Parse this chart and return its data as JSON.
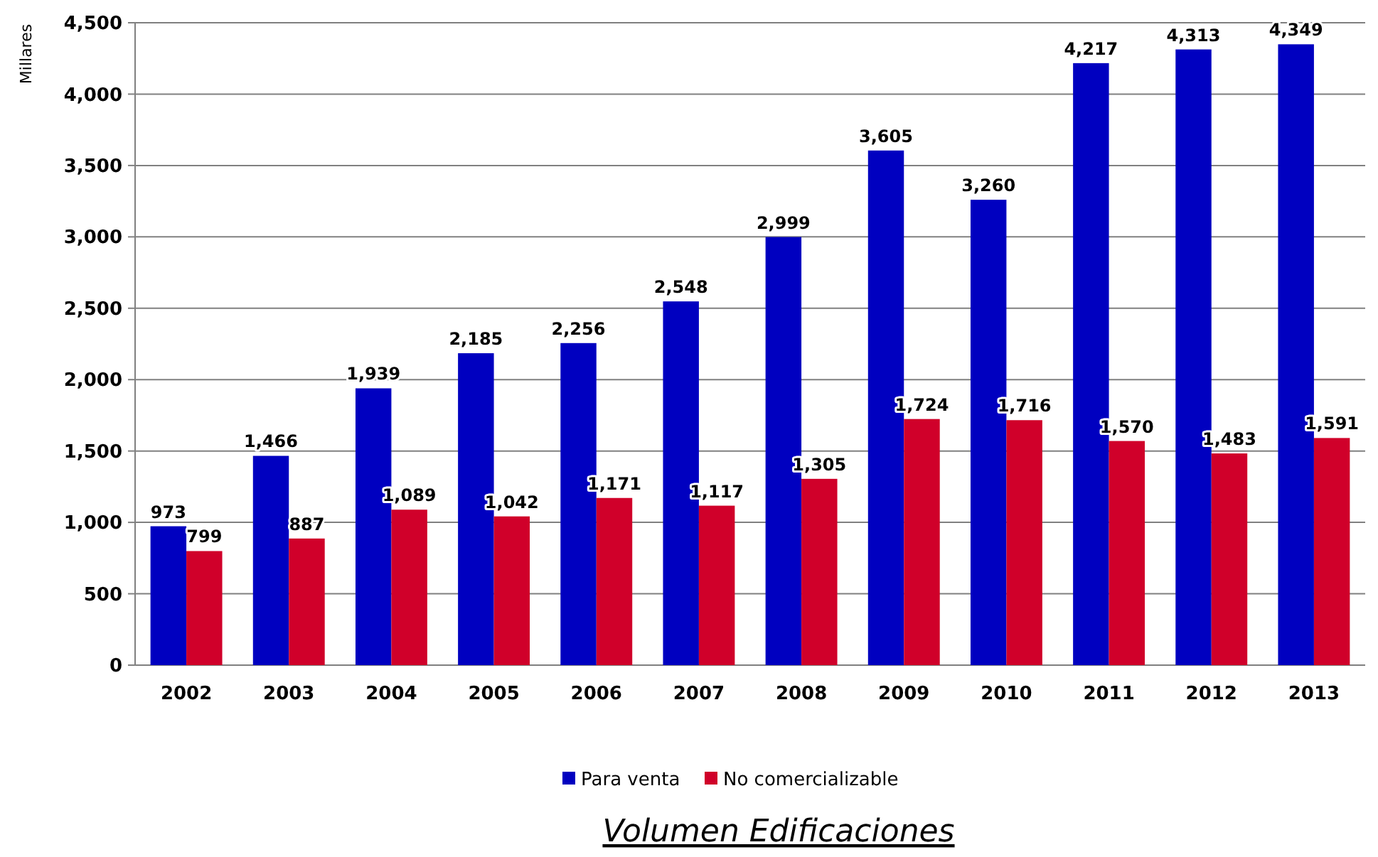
{
  "chart_data": {
    "type": "bar",
    "title": "Volumen Edificaciones",
    "ylabel": "Millares",
    "categories": [
      "2002",
      "2003",
      "2004",
      "2005",
      "2006",
      "2007",
      "2008",
      "2009",
      "2010",
      "2011",
      "2012",
      "2013"
    ],
    "series": [
      {
        "name": "Para venta",
        "color": "#0000c0",
        "values": [
          973,
          1466,
          1939,
          2185,
          2256,
          2548,
          2999,
          3605,
          3260,
          4217,
          4313,
          4349
        ],
        "value_labels": [
          "973",
          "1,466",
          "1,939",
          "2,185",
          "2,256",
          "2,548",
          "2,999",
          "3,605",
          "3,260",
          "4,217",
          "4,313",
          "4,349"
        ]
      },
      {
        "name": "No comercializable",
        "color": "#d0002a",
        "values": [
          799,
          887,
          1089,
          1042,
          1171,
          1117,
          1305,
          1724,
          1716,
          1570,
          1483,
          1591
        ],
        "value_labels": [
          "799",
          "887",
          "1,089",
          "1,042",
          "1,171",
          "1,117",
          "1,305",
          "1,724",
          "1,716",
          "1,570",
          "1,483",
          "1,591"
        ]
      }
    ],
    "ylim": [
      0,
      4500
    ],
    "yticks": [
      0,
      500,
      {
        "value": 1000,
        "label": "1,000"
      },
      {
        "value": 1500,
        "label": "1,500"
      },
      {
        "value": 2000,
        "label": "2,000"
      },
      {
        "value": 2500,
        "label": "2,500"
      },
      {
        "value": 3000,
        "label": "3,000"
      },
      {
        "value": 3500,
        "label": "3,500"
      },
      {
        "value": 4000,
        "label": "4,000"
      },
      {
        "value": 4500,
        "label": "4,500"
      }
    ],
    "grid": "y",
    "legend": "bottom"
  }
}
